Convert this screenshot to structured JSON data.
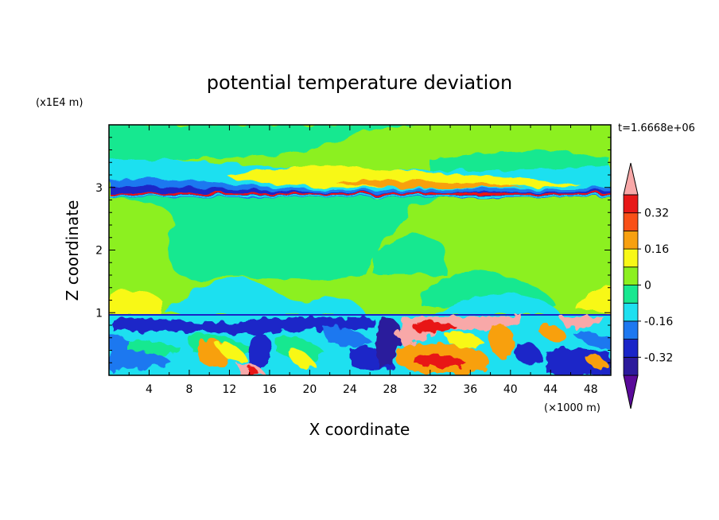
{
  "chart_data": {
    "type": "heatmap",
    "title": "potential temperature deviation",
    "xlabel": "X coordinate",
    "ylabel": "Z coordinate",
    "x_unit": "(×1000 m)",
    "y_unit": "(x1E4 m)",
    "timestamp": "t=1.6668e+06",
    "xlim": [
      0,
      50
    ],
    "ylim": [
      0,
      4
    ],
    "x_ticks": [
      4,
      8,
      12,
      16,
      20,
      24,
      28,
      32,
      36,
      40,
      44,
      48
    ],
    "y_ticks": [
      1,
      2,
      3
    ],
    "x_tick_labels": [
      "4",
      "8",
      "12",
      "16",
      "20",
      "24",
      "28",
      "32",
      "36",
      "40",
      "44",
      "48"
    ],
    "y_tick_labels": [
      "1",
      "2",
      "3"
    ],
    "colorbar": {
      "levels": [
        -0.4,
        -0.32,
        -0.24,
        -0.16,
        -0.08,
        0,
        0.08,
        0.16,
        0.24,
        0.32,
        0.4
      ],
      "colors": [
        "#5a0a9a",
        "#2c1a9c",
        "#1a25c8",
        "#1e78f0",
        "#1ee0f0",
        "#18e890",
        "#8cf020",
        "#f8f818",
        "#f8a010",
        "#f85018",
        "#e81818",
        "#f8a8a8"
      ],
      "tick_values": [
        0.32,
        0.16,
        0,
        -0.16,
        -0.32
      ],
      "tick_labels": [
        "0.32",
        "0.16",
        "0",
        "-0.16",
        "-0.32"
      ]
    }
  }
}
